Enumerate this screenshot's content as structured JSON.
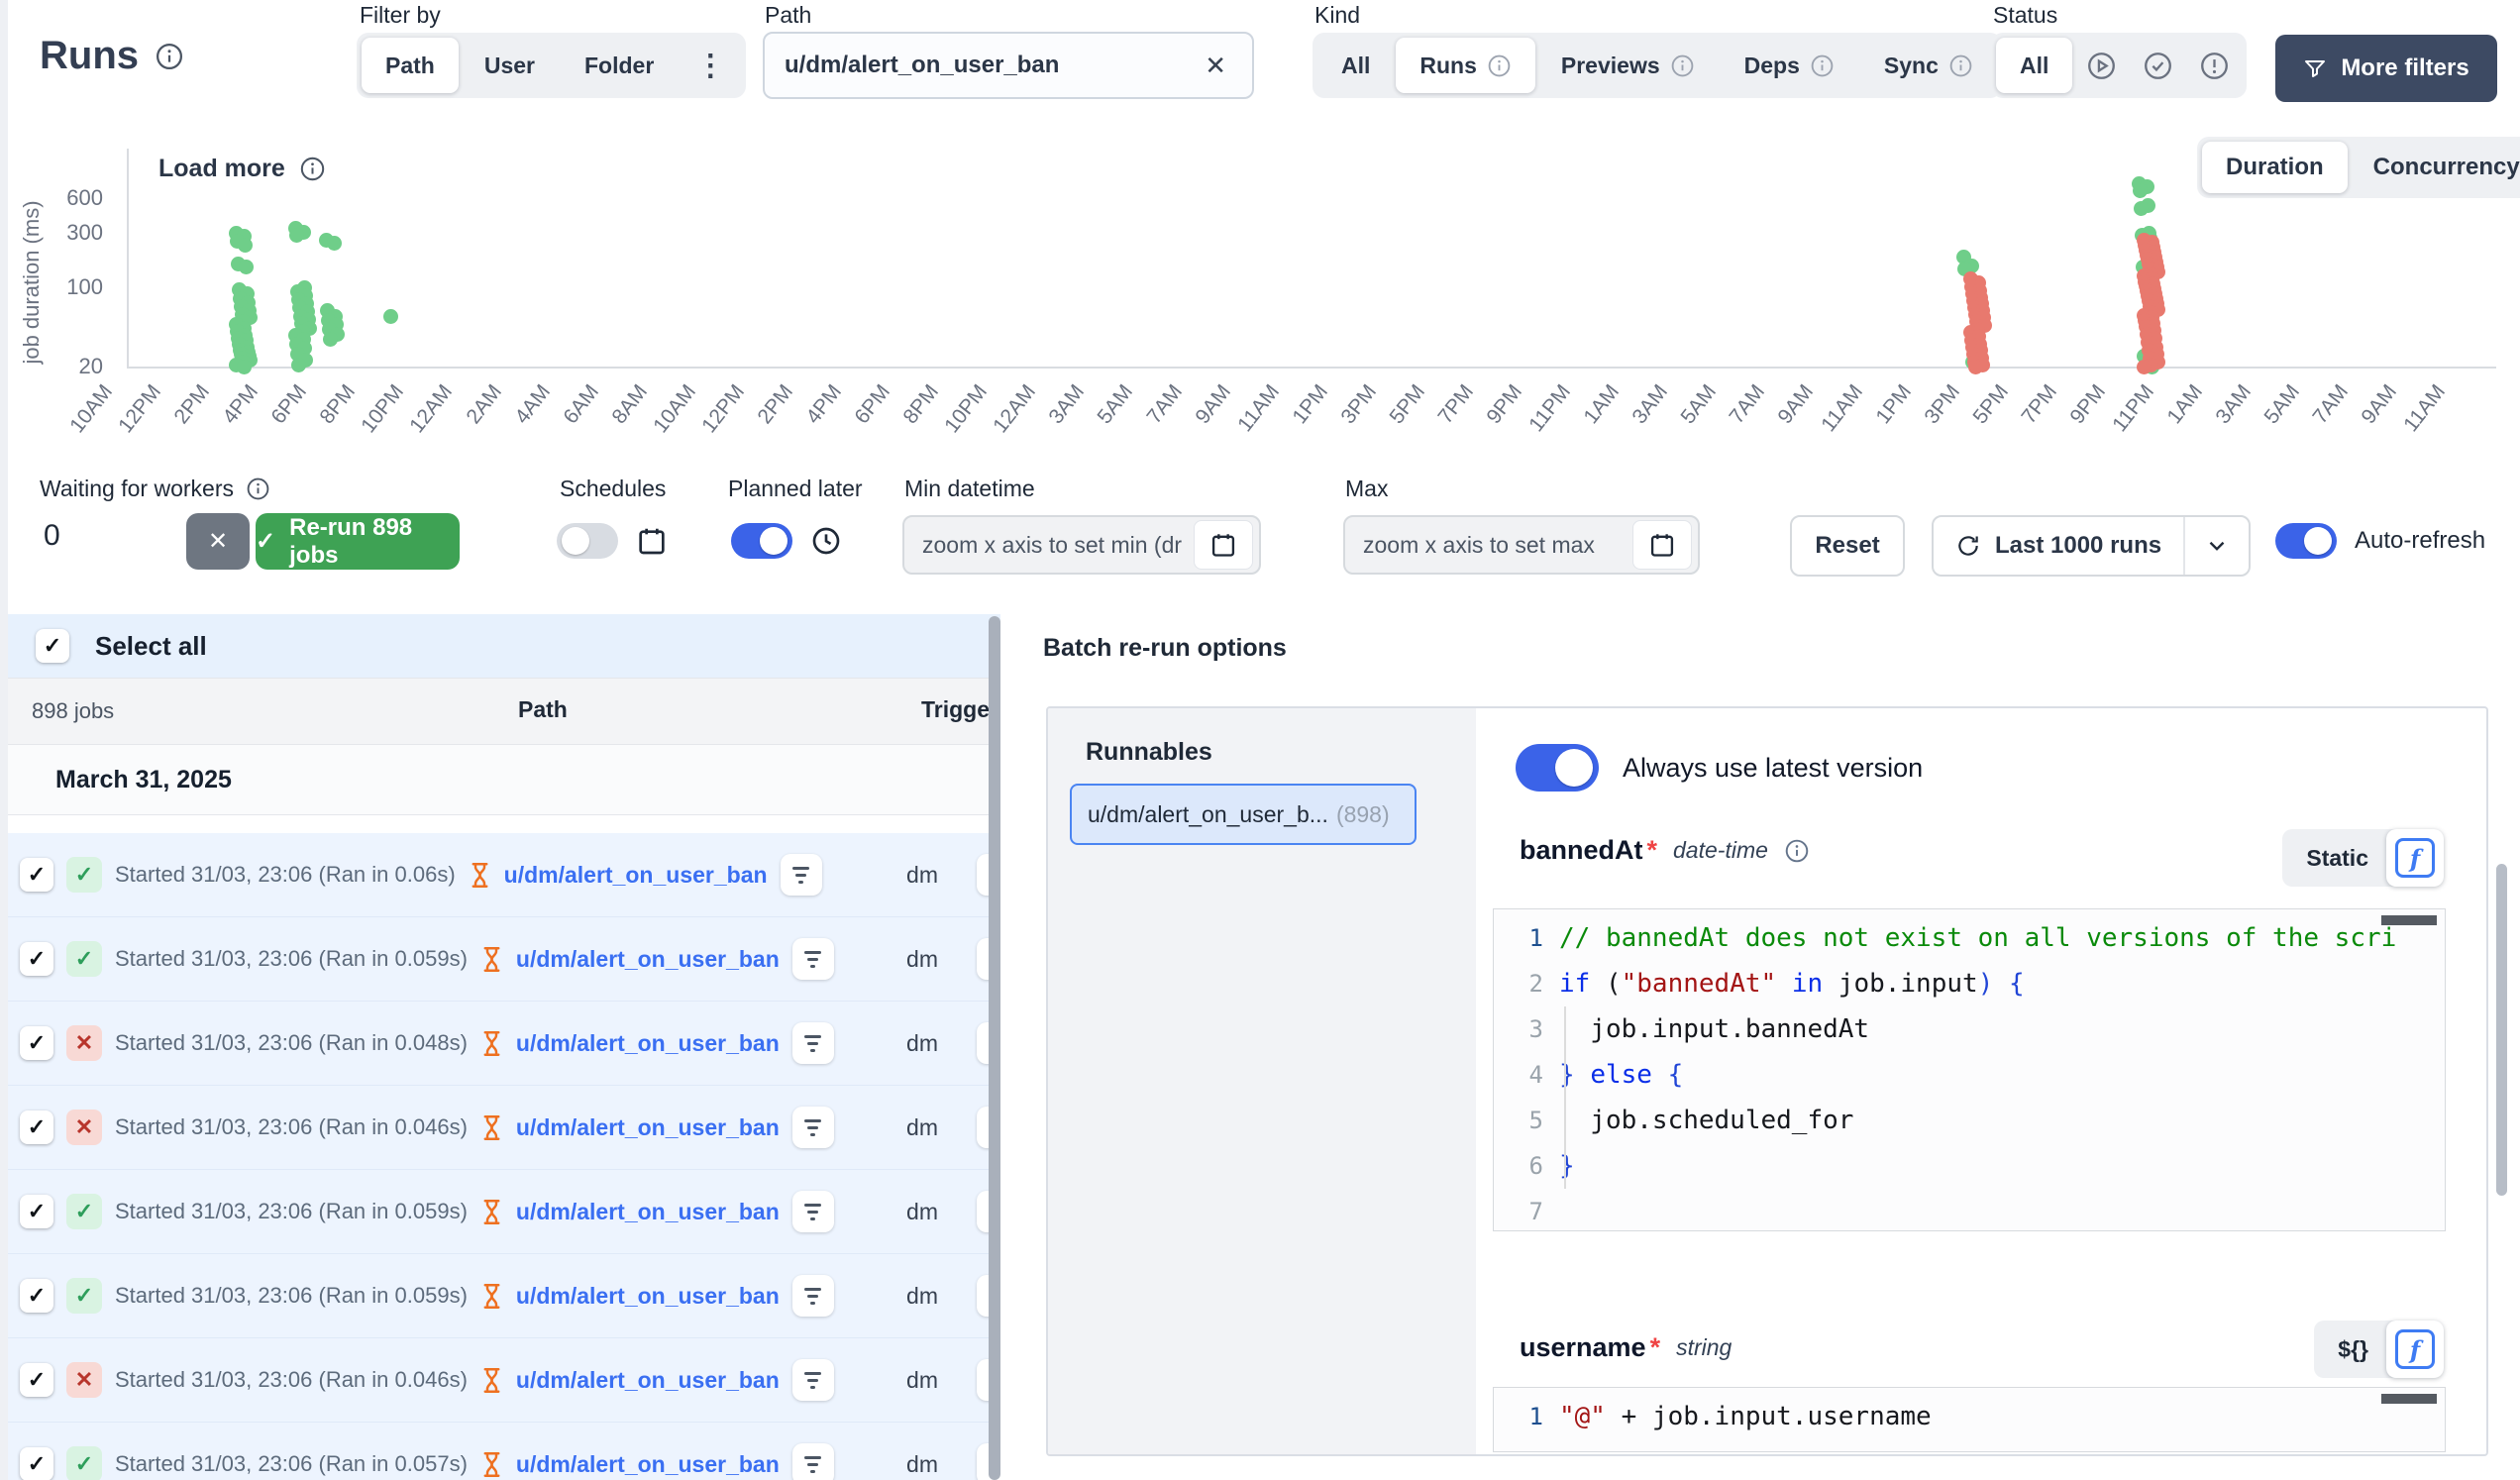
{
  "page": {
    "title": "Runs"
  },
  "filter_by": {
    "label": "Filter by",
    "options": [
      {
        "label": "Path"
      },
      {
        "label": "User"
      },
      {
        "label": "Folder"
      }
    ],
    "active": "Path"
  },
  "path_filter": {
    "label": "Path",
    "value": "u/dm/alert_on_user_ban"
  },
  "kind": {
    "label": "Kind",
    "options": [
      {
        "label": "All"
      },
      {
        "label": "Runs"
      },
      {
        "label": "Previews"
      },
      {
        "label": "Deps"
      },
      {
        "label": "Sync"
      }
    ],
    "active": "Runs"
  },
  "status": {
    "label": "Status",
    "all_label": "All"
  },
  "more_filters_label": "More filters",
  "chart": {
    "load_more_label": "Load more",
    "view_options": [
      {
        "label": "Duration"
      },
      {
        "label": "Concurrency"
      }
    ],
    "active_view": "Duration"
  },
  "chart_data": {
    "type": "scatter",
    "title": "",
    "ylabel": "job duration (ms)",
    "yscale": "log",
    "y_ticks": [
      600,
      300,
      100,
      20
    ],
    "x_ticks": [
      "10AM",
      "12PM",
      "2PM",
      "4PM",
      "6PM",
      "8PM",
      "10PM",
      "12AM",
      "2AM",
      "4AM",
      "6AM",
      "8AM",
      "10AM",
      "12PM",
      "2PM",
      "4PM",
      "6PM",
      "8PM",
      "10PM",
      "12AM",
      "3AM",
      "5AM",
      "7AM",
      "9AM",
      "11AM",
      "1PM",
      "3PM",
      "5PM",
      "7PM",
      "9PM",
      "11PM",
      "1AM",
      "3AM",
      "5AM",
      "7AM",
      "9AM",
      "11AM",
      "1PM",
      "3PM",
      "5PM",
      "7PM",
      "9PM",
      "11PM",
      "1AM",
      "3AM",
      "5AM",
      "7AM",
      "9AM",
      "11AM"
    ],
    "colors": {
      "success": "#6fce89",
      "failure": "#e8796e"
    },
    "clusters": [
      {
        "x": 0.049,
        "status": "success",
        "durations": [
          300,
          280,
          255,
          235,
          160,
          150,
          95,
          88,
          80,
          74,
          68,
          63,
          58,
          54,
          50,
          47,
          44,
          41,
          38,
          36,
          34,
          32,
          30,
          28,
          27,
          26,
          25,
          24,
          23,
          22,
          21,
          20
        ]
      },
      {
        "x": 0.074,
        "status": "success",
        "durations": [
          330,
          305,
          285,
          100,
          92,
          85,
          78,
          72,
          66,
          61,
          56,
          52,
          48,
          44,
          41,
          38,
          35,
          32,
          29,
          26,
          23,
          21
        ]
      },
      {
        "x": 0.087,
        "status": "success",
        "durations": [
          260,
          245,
          62,
          56,
          51,
          47,
          43,
          39,
          35
        ]
      },
      {
        "x": 0.114,
        "status": "success",
        "durations": [
          55
        ]
      },
      {
        "x": 0.778,
        "status": "success",
        "durations": [
          185,
          155,
          145,
          22
        ]
      },
      {
        "x": 0.781,
        "status": "failure",
        "durations": [
          120,
          110,
          102,
          94,
          88,
          82,
          77,
          72,
          67,
          62,
          58,
          54,
          50,
          46,
          43,
          40,
          37,
          34,
          32,
          30,
          28,
          26,
          24,
          22,
          21,
          20
        ]
      },
      {
        "x": 0.852,
        "status": "success",
        "durations": [
          820,
          760,
          700,
          520,
          490,
          300,
          285,
          272,
          150,
          92,
          25,
          20
        ]
      },
      {
        "x": 0.854,
        "status": "failure",
        "durations": [
          260,
          248,
          236,
          225,
          214,
          204,
          194,
          185,
          176,
          168,
          160,
          152,
          145,
          138,
          131,
          125,
          119,
          113,
          108,
          103,
          98,
          93,
          88,
          84,
          80,
          76,
          72,
          68,
          64,
          60,
          57,
          54,
          51,
          48,
          45,
          42,
          39,
          36,
          33,
          30,
          28,
          26,
          24,
          22,
          21,
          20
        ]
      }
    ]
  },
  "controls": {
    "waiting": {
      "label": "Waiting for workers",
      "value": "0"
    },
    "rerun_label": "Re-run 898 jobs",
    "schedules": {
      "label": "Schedules",
      "on": false
    },
    "planned_later": {
      "label": "Planned later",
      "on": true
    },
    "min_datetime": {
      "label": "Min datetime",
      "placeholder": "zoom x axis to set min (dr"
    },
    "max_datetime": {
      "label": "Max",
      "placeholder": "zoom x axis to set max"
    },
    "reset_label": "Reset",
    "last_runs_label": "Last 1000 runs",
    "auto_refresh_label": "Auto-refresh"
  },
  "job_list": {
    "select_all_label": "Select all",
    "count_label": "898 jobs",
    "col_path": "Path",
    "col_triggered": "Triggered",
    "date_header": "March 31, 2025",
    "rows": [
      {
        "status": "success",
        "started": "Started 31/03, 23:06 (Ran in 0.06s)",
        "path": "u/dm/alert_on_user_ban",
        "by": "dm"
      },
      {
        "status": "success",
        "started": "Started 31/03, 23:06 (Ran in 0.059s)",
        "path": "u/dm/alert_on_user_ban",
        "by": "dm"
      },
      {
        "status": "failure",
        "started": "Started 31/03, 23:06 (Ran in 0.048s)",
        "path": "u/dm/alert_on_user_ban",
        "by": "dm"
      },
      {
        "status": "failure",
        "started": "Started 31/03, 23:06 (Ran in 0.046s)",
        "path": "u/dm/alert_on_user_ban",
        "by": "dm"
      },
      {
        "status": "success",
        "started": "Started 31/03, 23:06 (Ran in 0.059s)",
        "path": "u/dm/alert_on_user_ban",
        "by": "dm"
      },
      {
        "status": "success",
        "started": "Started 31/03, 23:06 (Ran in 0.059s)",
        "path": "u/dm/alert_on_user_ban",
        "by": "dm"
      },
      {
        "status": "failure",
        "started": "Started 31/03, 23:06 (Ran in 0.046s)",
        "path": "u/dm/alert_on_user_ban",
        "by": "dm"
      },
      {
        "status": "success",
        "started": "Started 31/03, 23:06 (Ran in 0.057s)",
        "path": "u/dm/alert_on_user_ban",
        "by": "dm"
      }
    ]
  },
  "batch_panel": {
    "title": "Batch re-run options",
    "runnables_label": "Runnables",
    "selected_runnable": {
      "name": "u/dm/alert_on_user_b...",
      "count": "(898)"
    },
    "latest_version_label": "Always use latest version",
    "fields": [
      {
        "name": "bannedAt",
        "required": "*",
        "type": "date-time",
        "mode_label": "Static",
        "code": [
          {
            "n": "1",
            "tokens": [
              [
                "c",
                "// bannedAt does not exist on all versions of the scri"
              ]
            ]
          },
          {
            "n": "2",
            "tokens": [
              [
                "k",
                "if"
              ],
              [
                "p",
                " ("
              ],
              [
                "s",
                "\"bannedAt\""
              ],
              [
                "p",
                " "
              ],
              [
                "k",
                "in"
              ],
              [
                "p",
                " job.input"
              ],
              [
                "b",
                ") {"
              ]
            ]
          },
          {
            "n": "3",
            "tokens": [
              [
                "p",
                "  job.input.bannedAt"
              ]
            ]
          },
          {
            "n": "4",
            "tokens": [
              [
                "b",
                "}"
              ],
              [
                "p",
                " "
              ],
              [
                "k",
                "else"
              ],
              [
                "p",
                " "
              ],
              [
                "b",
                "{"
              ]
            ]
          },
          {
            "n": "5",
            "tokens": [
              [
                "p",
                "  job.scheduled_for"
              ]
            ]
          },
          {
            "n": "6",
            "tokens": [
              [
                "b",
                "}"
              ]
            ]
          },
          {
            "n": "7",
            "tokens": []
          }
        ]
      },
      {
        "name": "username",
        "required": "*",
        "type": "string",
        "mode_label": "${}",
        "code": [
          {
            "n": "1",
            "tokens": [
              [
                "s",
                "\"@\""
              ],
              [
                "p",
                " + job.input.username"
              ]
            ]
          }
        ]
      }
    ]
  }
}
